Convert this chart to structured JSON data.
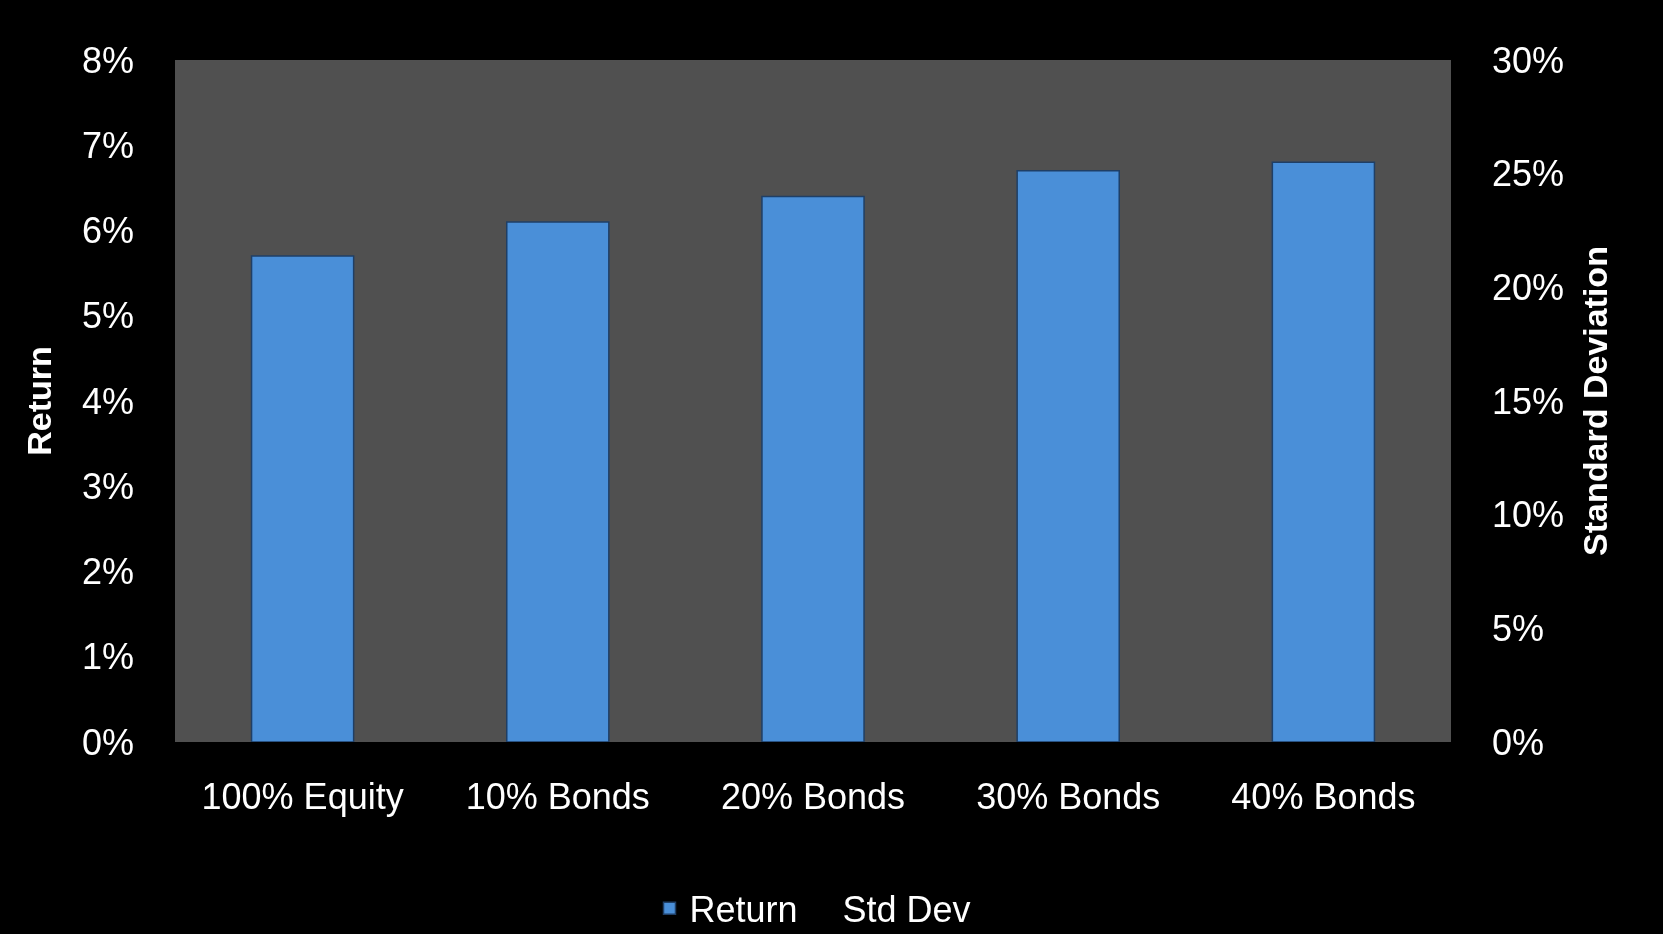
{
  "chart_data": {
    "type": "bar",
    "ylabel": "Return",
    "y2label": "Standard Deviation",
    "categories": [
      "100% Equity",
      "10% Bonds",
      "20% Bonds",
      "30% Bonds",
      "40% Bonds"
    ],
    "series": [
      {
        "name": "Return",
        "color": "#4a8fd8",
        "values": [
          5.7,
          6.1,
          6.4,
          6.7,
          6.8
        ]
      },
      {
        "name": "Std Dev",
        "type": "line",
        "axis": "y2",
        "values": [
          null,
          null,
          null,
          null,
          null
        ]
      }
    ],
    "ylim": [
      0,
      8
    ],
    "yticks": [
      {
        "value": 0,
        "label": "0%"
      },
      {
        "value": 1,
        "label": "1%"
      },
      {
        "value": 2,
        "label": "2%"
      },
      {
        "value": 3,
        "label": "3%"
      },
      {
        "value": 4,
        "label": "4%"
      },
      {
        "value": 5,
        "label": "5%"
      },
      {
        "value": 6,
        "label": "6%"
      },
      {
        "value": 7,
        "label": "7%"
      },
      {
        "value": 8,
        "label": "8%"
      }
    ],
    "y2lim": [
      0,
      30
    ],
    "y2ticks": [
      {
        "value": 0,
        "label": "0%"
      },
      {
        "value": 5,
        "label": "5%"
      },
      {
        "value": 10,
        "label": "10%"
      },
      {
        "value": 15,
        "label": "15%"
      },
      {
        "value": 20,
        "label": "20%"
      },
      {
        "value": 25,
        "label": "25%"
      },
      {
        "value": 30,
        "label": "30%"
      }
    ],
    "legend": "bottom"
  }
}
